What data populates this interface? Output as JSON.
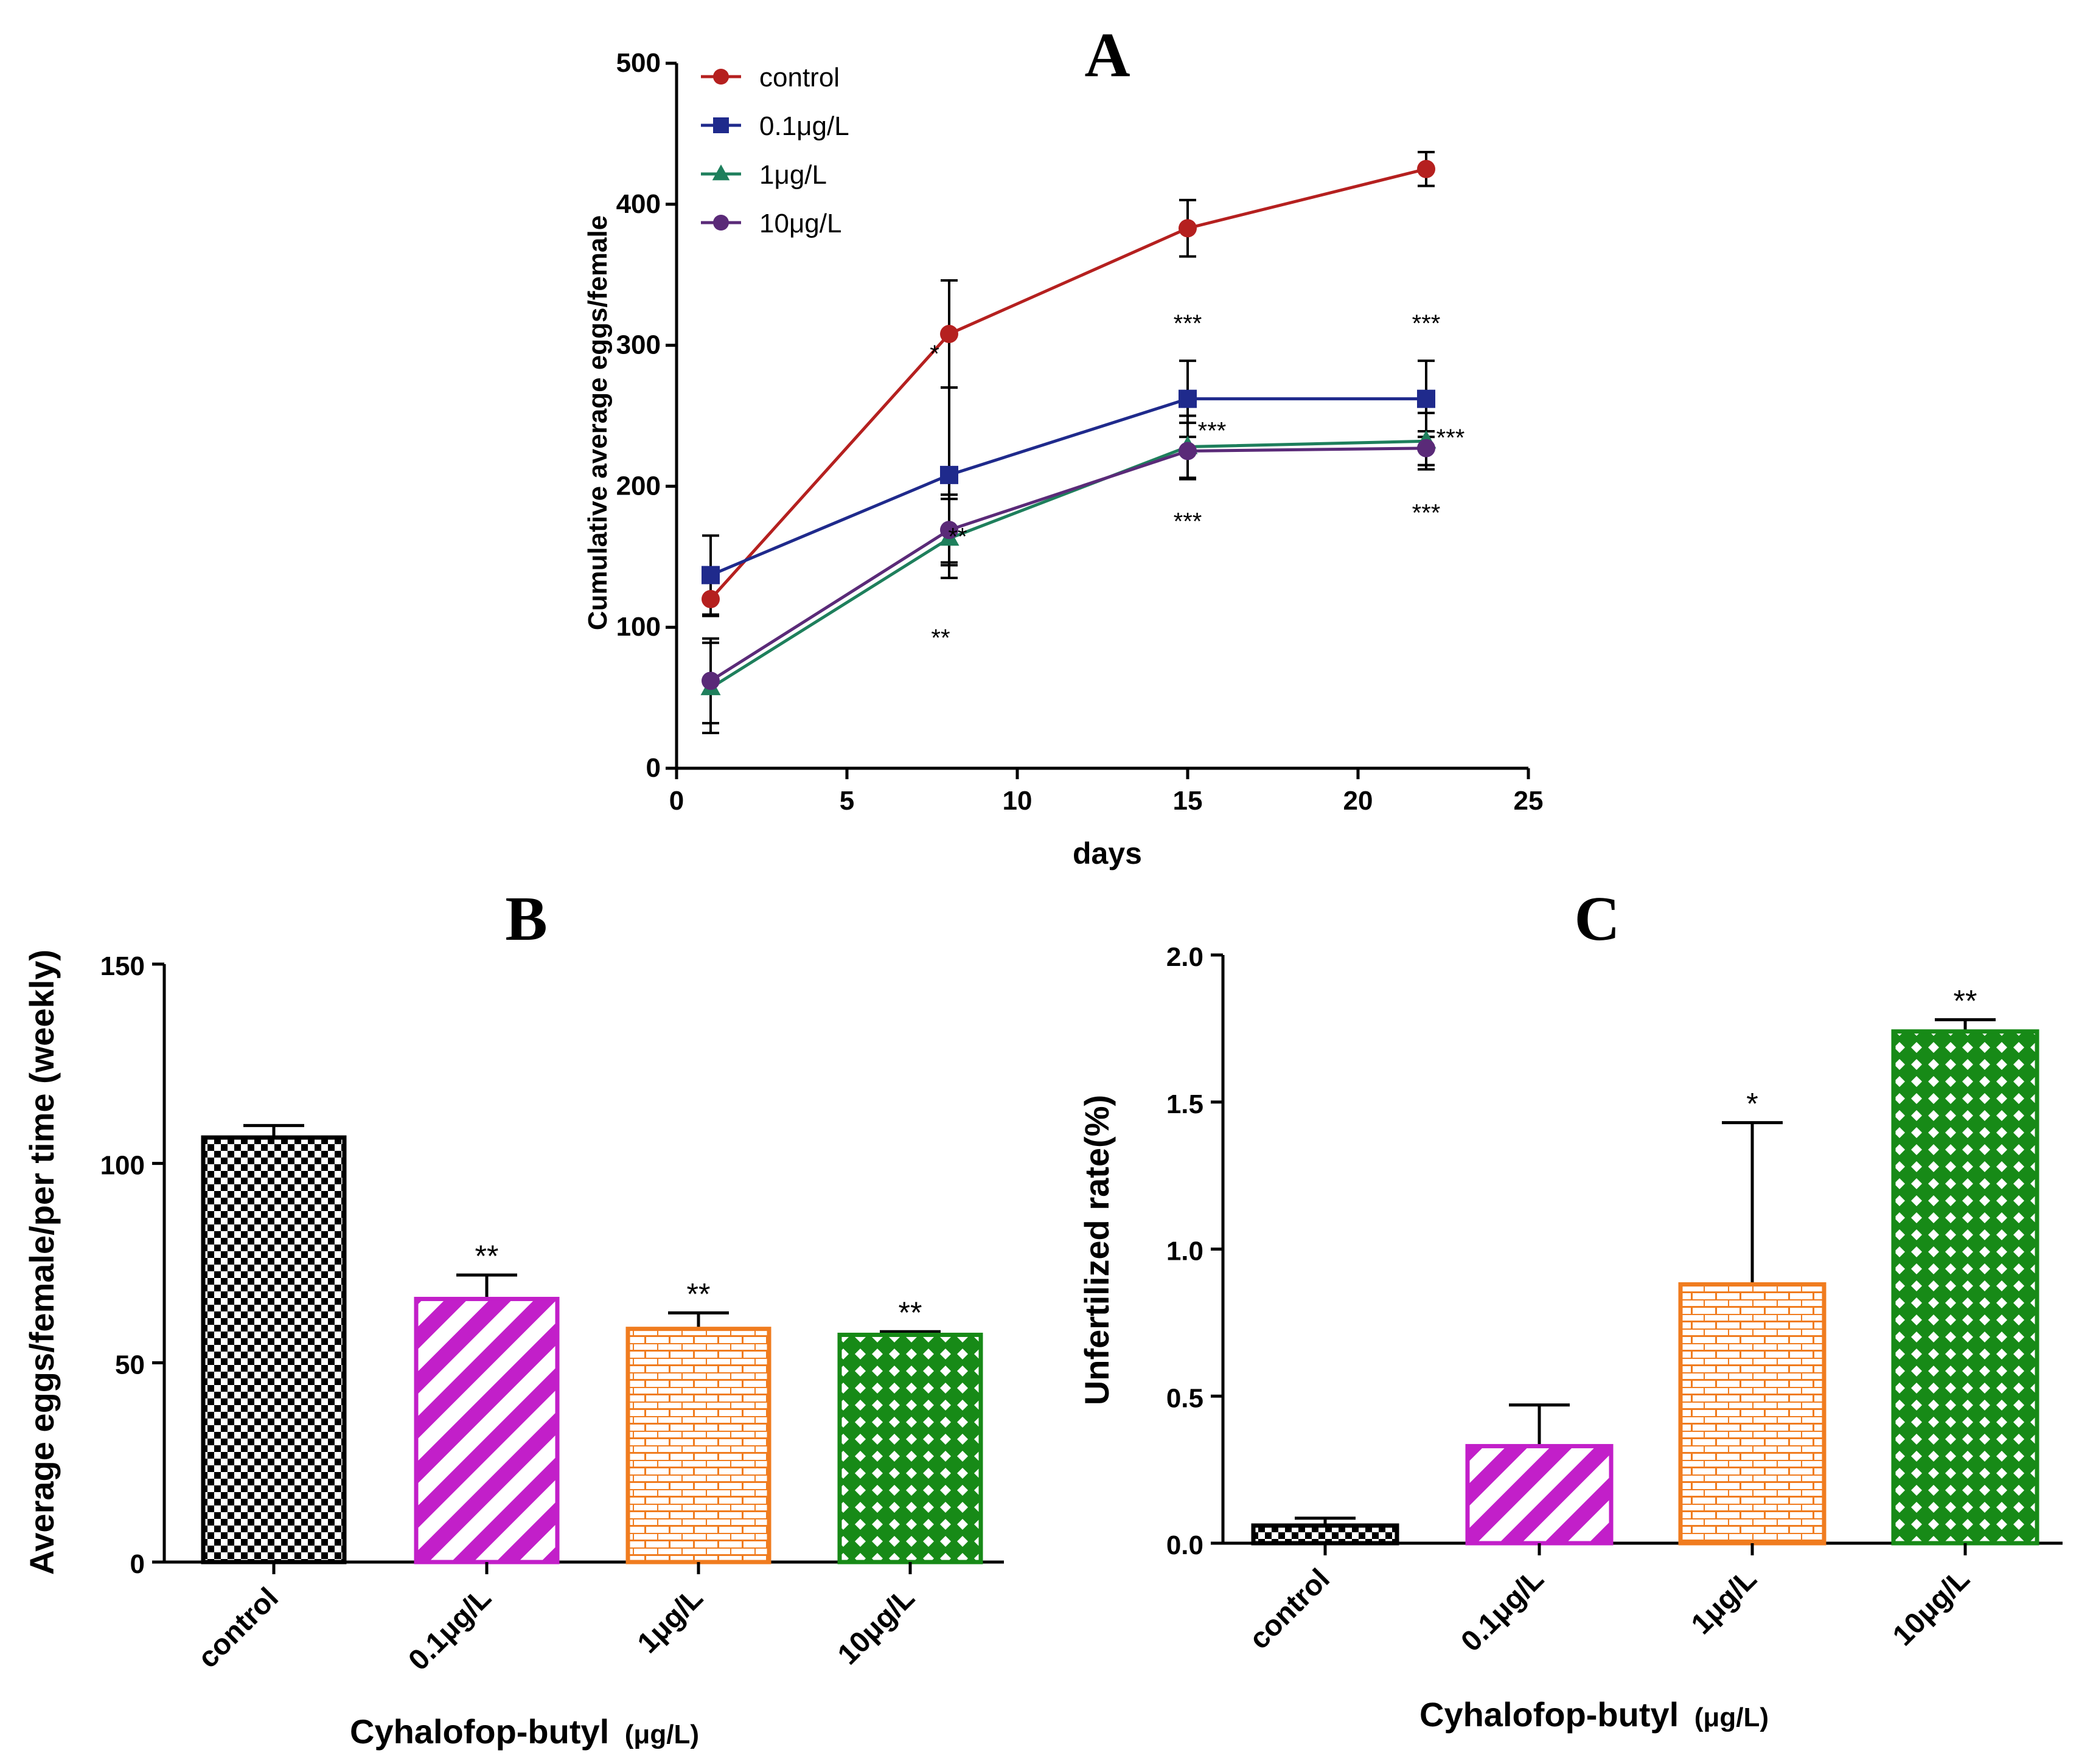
{
  "chart_data": [
    {
      "panel": "A",
      "type": "line",
      "title": "A",
      "xlabel": "days",
      "ylabel": "Cumulative average  eggs/female",
      "xlim": [
        0,
        25
      ],
      "ylim": [
        0,
        500
      ],
      "xticks": [
        0,
        5,
        10,
        15,
        20,
        25
      ],
      "yticks": [
        0,
        100,
        200,
        300,
        400,
        500
      ],
      "x": [
        1,
        8,
        15,
        22
      ],
      "legend_position": "top-left",
      "series": [
        {
          "name": "control",
          "color": "#b5201f",
          "marker": "circle",
          "values": [
            120,
            308,
            383,
            425
          ],
          "errors": [
            12,
            38,
            20,
            12
          ],
          "sig": [
            "",
            "",
            "",
            ""
          ]
        },
        {
          "name": "0.1μg/L",
          "color": "#1f2a8c",
          "marker": "square",
          "values": [
            137,
            208,
            262,
            262
          ],
          "errors": [
            28,
            62,
            27,
            27
          ],
          "sig": [
            "",
            "*",
            "***",
            "***"
          ]
        },
        {
          "name": "1μg/L",
          "color": "#1e7f5c",
          "marker": "triangle",
          "values": [
            57,
            163,
            228,
            232
          ],
          "errors": [
            32,
            28,
            22,
            20
          ],
          "sig": [
            "",
            "**",
            "***",
            "***"
          ]
        },
        {
          "name": "10μg/L",
          "color": "#5a2a78",
          "marker": "circle",
          "values": [
            62,
            169,
            225,
            227
          ],
          "errors": [
            30,
            25,
            20,
            12
          ],
          "sig": [
            "",
            "**",
            "***",
            "***"
          ]
        }
      ]
    },
    {
      "panel": "B",
      "type": "bar",
      "title": "B",
      "xlabel": "Cyhalofop-butyl",
      "xlabel_unit": "(μg/L)",
      "ylabel": "Average eggs/female/per time (weekly)",
      "ylim": [
        0,
        150
      ],
      "yticks": [
        0,
        50,
        100,
        150
      ],
      "categories": [
        "control",
        "0.1μg/L",
        "1μg/L",
        "10μg/L"
      ],
      "values": [
        106.5,
        66,
        58.5,
        57
      ],
      "errors": [
        3,
        6,
        4,
        0.8
      ],
      "sig": [
        "",
        "**",
        "**",
        "**"
      ],
      "colors": [
        "#000000",
        "#c21fc9",
        "#f07c1f",
        "#178a17"
      ],
      "patterns": [
        "checker",
        "diagonal",
        "brick",
        "lattice"
      ]
    },
    {
      "panel": "C",
      "type": "bar",
      "title": "C",
      "xlabel": "Cyhalofop-butyl",
      "xlabel_unit": "(μg/L)",
      "ylabel": "Unfertilized rate(%)",
      "ylim": [
        0,
        2.0
      ],
      "yticks": [
        "0.0",
        "0.5",
        "1.0",
        "1.5",
        "2.0"
      ],
      "categories": [
        "control",
        "0.1μg/L",
        "1μg/L",
        "10μg/L"
      ],
      "values": [
        0.06,
        0.33,
        0.88,
        1.74
      ],
      "errors": [
        0.025,
        0.14,
        0.55,
        0.04
      ],
      "sig": [
        "",
        "",
        "*",
        "**"
      ],
      "colors": [
        "#000000",
        "#c21fc9",
        "#f07c1f",
        "#178a17"
      ],
      "patterns": [
        "checker",
        "diagonal",
        "brick",
        "lattice"
      ]
    }
  ]
}
